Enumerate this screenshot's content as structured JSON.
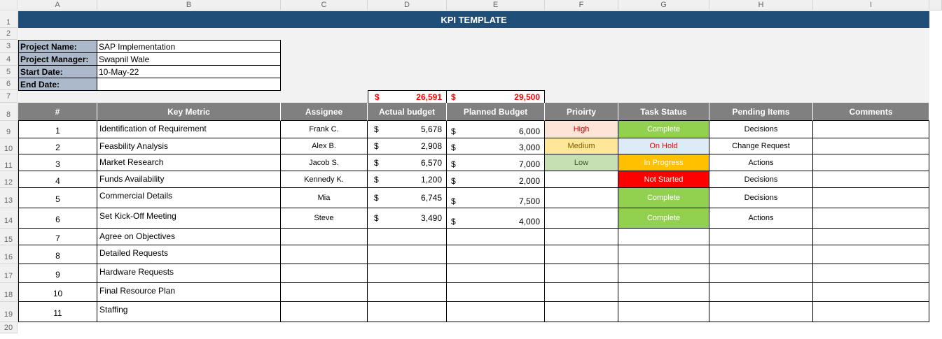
{
  "columns": [
    "A",
    "B",
    "C",
    "D",
    "E",
    "F",
    "G",
    "H",
    "I"
  ],
  "rows": [
    "1",
    "2",
    "3",
    "4",
    "5",
    "6",
    "7",
    "8",
    "9",
    "10",
    "11",
    "12",
    "13",
    "14",
    "15",
    "16",
    "17",
    "18",
    "19",
    "20"
  ],
  "title": "KPI TEMPLATE",
  "project": {
    "name_label": "Project Name:",
    "name_value": "SAP Implementation",
    "manager_label": "Project Manager:",
    "manager_value": "Swapnil Wale",
    "start_label": "Start Date:",
    "start_value": "10-May-22",
    "end_label": "End Date:",
    "end_value": ""
  },
  "totals": {
    "currency": "$",
    "actual": "26,591",
    "planned": "29,500"
  },
  "headers": [
    "#",
    "Key Metric",
    "Assignee",
    "Actual budget",
    "Planned Budget",
    "Prioirty",
    "Task Status",
    "Pending Items",
    "Comments"
  ],
  "tasks": [
    {
      "num": "1",
      "metric": "Identification of Requirement",
      "assignee": "Frank C.",
      "actual": "5,678",
      "planned": "6,000",
      "priority": "High",
      "status": "Complete",
      "pending": "Decisions",
      "comments": ""
    },
    {
      "num": "2",
      "metric": "Feasbility Analysis",
      "assignee": "Alex B.",
      "actual": "2,908",
      "planned": "3,000",
      "priority": "Medium",
      "status": "On Hold",
      "pending": "Change Request",
      "comments": ""
    },
    {
      "num": "3",
      "metric": "Market Research",
      "assignee": "Jacob S.",
      "actual": "6,570",
      "planned": "7,000",
      "priority": "Low",
      "status": "In Progress",
      "pending": "Actions",
      "comments": ""
    },
    {
      "num": "4",
      "metric": "Funds Availability",
      "assignee": "Kennedy K.",
      "actual": "1,200",
      "planned": "2,000",
      "priority": "",
      "status": "Not Started",
      "pending": "Decisions",
      "comments": ""
    },
    {
      "num": "5",
      "metric": "Commercial Details",
      "assignee": "Mia",
      "actual": "6,745",
      "planned": "7,500",
      "priority": "",
      "status": "Complete",
      "pending": "Decisions",
      "comments": ""
    },
    {
      "num": "6",
      "metric": "Set Kick-Off Meeting",
      "assignee": "Steve",
      "actual": "3,490",
      "planned": "4,000",
      "priority": "",
      "status": "Complete",
      "pending": "Actions",
      "comments": ""
    },
    {
      "num": "7",
      "metric": "Agree on Objectives",
      "assignee": "",
      "actual": "",
      "planned": "",
      "priority": "",
      "status": "",
      "pending": "",
      "comments": ""
    },
    {
      "num": "8",
      "metric": "Detailed Requests",
      "assignee": "",
      "actual": "",
      "planned": "",
      "priority": "",
      "status": "",
      "pending": "",
      "comments": ""
    },
    {
      "num": "9",
      "metric": "Hardware Requests",
      "assignee": "",
      "actual": "",
      "planned": "",
      "priority": "",
      "status": "",
      "pending": "",
      "comments": ""
    },
    {
      "num": "10",
      "metric": "Final Resource Plan",
      "assignee": "",
      "actual": "",
      "planned": "",
      "priority": "",
      "status": "",
      "pending": "",
      "comments": ""
    },
    {
      "num": "11",
      "metric": "Staffing",
      "assignee": "",
      "actual": "",
      "planned": "",
      "priority": "",
      "status": "",
      "pending": "",
      "comments": ""
    }
  ],
  "colors": {
    "title_bg": "#1f4e78",
    "header_bg": "#808080",
    "label_bg": "#acb9ca",
    "priority": {
      "High": {
        "bg": "#fce4d6",
        "fg": "#c00000"
      },
      "Medium": {
        "bg": "#ffe699",
        "fg": "#7f6000"
      },
      "Low": {
        "bg": "#c6e0b4",
        "fg": "#375623"
      }
    },
    "status": {
      "Complete": {
        "bg": "#92d050",
        "fg": "#ffffff"
      },
      "On Hold": {
        "bg": "#ddebf7",
        "fg": "#ff0000"
      },
      "In Progress": {
        "bg": "#ffc000",
        "fg": "#ffffff"
      },
      "Not Started": {
        "bg": "#ff0000",
        "fg": "#ffffff"
      }
    }
  }
}
